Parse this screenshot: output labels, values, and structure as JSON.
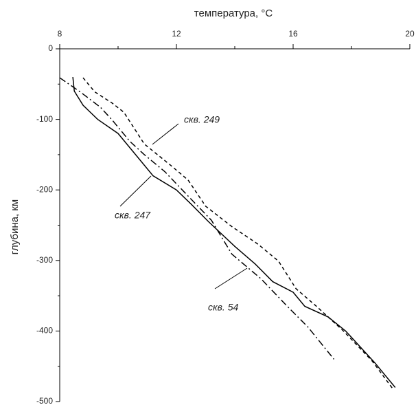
{
  "chart_data": {
    "type": "line",
    "x_label": "температура, °C",
    "y_label": "глубина, км",
    "xlim": [
      8,
      20
    ],
    "xticks": [
      8,
      12,
      16,
      20
    ],
    "ylim": [
      -500,
      0
    ],
    "yticks": [
      0,
      -100,
      -200,
      -300,
      -400,
      -500
    ],
    "series": [
      {
        "name": "скв. 247",
        "color": "#000000",
        "dash": "solid",
        "x": [
          8.45,
          8.5,
          8.8,
          9.3,
          10,
          10.4,
          10.8,
          11.2,
          12,
          12.5,
          13.1,
          14,
          14.7,
          15.3,
          16,
          16.4,
          17.2,
          17.8,
          18.8,
          19.5
        ],
        "values": [
          -40,
          -60,
          -80,
          -100,
          -120,
          -140,
          -160,
          -180,
          -200,
          -220,
          -245,
          -280,
          -305,
          -330,
          -345,
          -365,
          -380,
          -400,
          -445,
          -480
        ]
      },
      {
        "name": "скв. 249",
        "color": "#000000",
        "dash": "dashed",
        "x": [
          8.8,
          9.2,
          9.8,
          10.2,
          10.9,
          11.8,
          12.4,
          13,
          13.9,
          14.8,
          15.5,
          16.1,
          16.8,
          17.7,
          18.7,
          19.4
        ],
        "values": [
          -41,
          -61,
          -77,
          -90,
          -135,
          -165,
          -186,
          -223,
          -252,
          -277,
          -301,
          -340,
          -365,
          -399,
          -442,
          -481
        ]
      },
      {
        "name": "скв. 54",
        "color": "#000000",
        "dash": "dashdot",
        "x": [
          8,
          8.7,
          9.4,
          9.8,
          10.4,
          10.9,
          11.6,
          12.5,
          13.2,
          13.9,
          14.9,
          15.8,
          16.5,
          17.4
        ],
        "values": [
          -41,
          -61,
          -83,
          -101,
          -131,
          -150,
          -174,
          -213,
          -243,
          -291,
          -326,
          -365,
          -394,
          -440
        ]
      }
    ]
  }
}
